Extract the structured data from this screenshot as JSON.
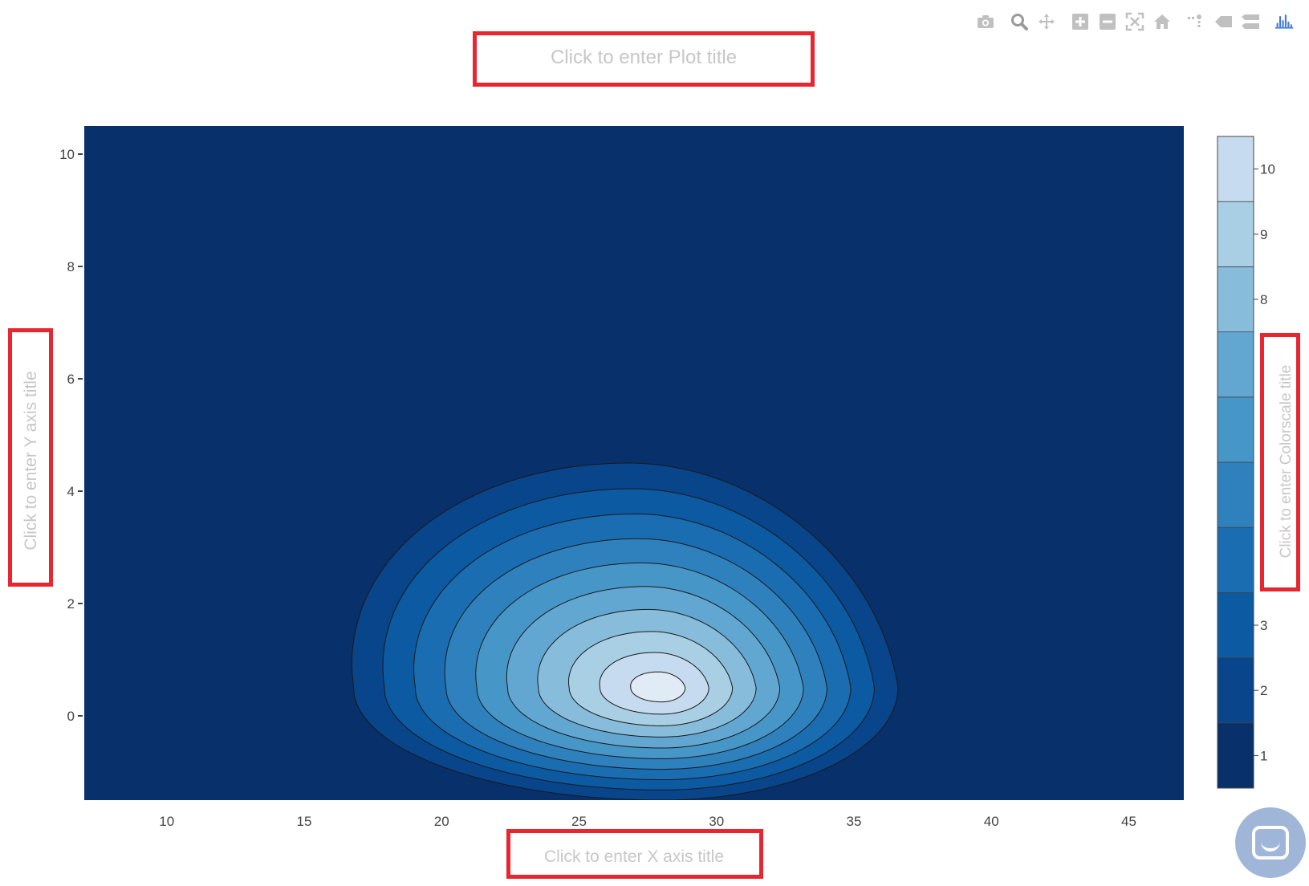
{
  "placeholders": {
    "plot_title": "Click to enter Plot title",
    "x_axis_title": "Click to enter X axis title",
    "y_axis_title": "Click to enter Y axis title",
    "colorscale_title": "Click to enter Colorscale title"
  },
  "modebar": {
    "buttons": [
      "camera-icon",
      "zoom-icon",
      "pan-icon",
      "zoom-in-icon",
      "zoom-out-icon",
      "autoscale-icon",
      "home-icon",
      "spike-lines-icon",
      "hover-closest-icon",
      "hover-compare-icon",
      "plotly-logo-icon"
    ]
  },
  "colors": {
    "accent_red": "#e8262f",
    "placeholder_text": "#c7c7c7",
    "background_level": "#08306b"
  },
  "chart_data": {
    "type": "contour",
    "title": "",
    "xlabel": "",
    "ylabel": "",
    "xlim": [
      7,
      47
    ],
    "ylim": [
      -1.5,
      10.5
    ],
    "x_ticks": [
      10,
      15,
      20,
      25,
      30,
      35,
      40,
      45
    ],
    "y_ticks": [
      0,
      2,
      4,
      6,
      8,
      10
    ],
    "peak": {
      "x": 28,
      "y": 0.5,
      "value": 10.5
    },
    "contour_levels": [
      1,
      2,
      3,
      4,
      5,
      6,
      7,
      8,
      9,
      10
    ],
    "colorscale": {
      "name": "Blues",
      "range": [
        0.5,
        10.5
      ],
      "ticks": [
        1,
        2,
        3,
        8,
        9,
        10
      ],
      "colors": [
        "#08306b",
        "#08458a",
        "#0b5aa2",
        "#1b6db2",
        "#2f81be",
        "#4696c8",
        "#62a6d2",
        "#87bddb",
        "#a8cfe4",
        "#c6dbef",
        "#e0ebf6",
        "#f7fbff"
      ]
    }
  }
}
